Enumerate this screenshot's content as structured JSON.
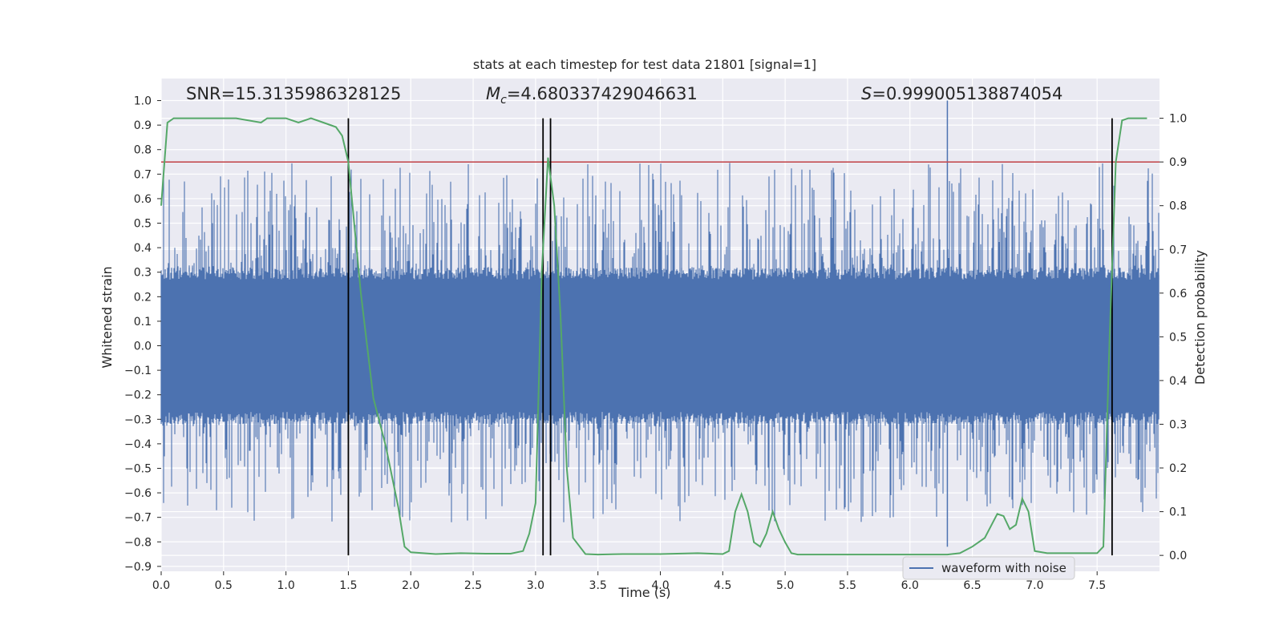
{
  "chart_data": {
    "type": "line",
    "title": "stats at each timestep for test data 21801 [signal=1]",
    "xlabel": "Time (s)",
    "ylabel": "Whitened strain",
    "y2label": "Detection probability",
    "xlim": [
      0.0,
      8.0
    ],
    "ylim": [
      -0.92,
      1.09
    ],
    "y2lim": [
      -0.0364,
      1.0909
    ],
    "grid": true,
    "legend": {
      "position": "bottom-right",
      "entries": [
        "waveform with noise"
      ]
    },
    "x_ticks": [
      "0.0",
      "0.5",
      "1.0",
      "1.5",
      "2.0",
      "2.5",
      "3.0",
      "3.5",
      "4.0",
      "4.5",
      "5.0",
      "5.5",
      "6.0",
      "6.5",
      "7.0",
      "7.5"
    ],
    "y_ticks": [
      "1.0",
      "0.9",
      "0.8",
      "0.7",
      "0.6",
      "0.5",
      "0.4",
      "0.3",
      "0.2",
      "0.1",
      "0.0",
      "−0.1",
      "−0.2",
      "−0.3",
      "−0.4",
      "−0.5",
      "−0.6",
      "−0.7",
      "−0.8",
      "−0.9"
    ],
    "y2_ticks": [
      "1.0",
      "0.9",
      "0.8",
      "0.7",
      "0.6",
      "0.5",
      "0.4",
      "0.3",
      "0.2",
      "0.1",
      "0.0"
    ],
    "annotations": {
      "snr": "SNR=15.3135986328125",
      "mc_symbol": "M",
      "mc_sub": "c",
      "mc_value": "=4.680337429046631",
      "s_symbol": "S",
      "s_value": "=0.999005138874054"
    },
    "series": [
      {
        "name": "waveform with noise",
        "axis": "left",
        "color": "#4c72b0",
        "typical_range": [
          -0.27,
          0.27
        ],
        "spike_extremes_max": 1.0,
        "spike_extremes_min": -0.82
      },
      {
        "axis": "right",
        "color": "#55a868",
        "x": [
          0.0,
          0.05,
          0.1,
          0.15,
          0.2,
          0.4,
          0.6,
          0.8,
          0.85,
          0.9,
          1.0,
          1.1,
          1.2,
          1.3,
          1.4,
          1.45,
          1.5,
          1.6,
          1.7,
          1.8,
          1.9,
          1.95,
          2.0,
          2.2,
          2.4,
          2.6,
          2.8,
          2.9,
          2.95,
          3.0,
          3.05,
          3.1,
          3.15,
          3.2,
          3.25,
          3.3,
          3.4,
          3.5,
          3.7,
          4.0,
          4.3,
          4.5,
          4.55,
          4.6,
          4.65,
          4.7,
          4.75,
          4.8,
          4.85,
          4.9,
          4.95,
          5.0,
          5.05,
          5.1,
          5.5,
          6.0,
          6.3,
          6.4,
          6.5,
          6.6,
          6.7,
          6.75,
          6.8,
          6.85,
          6.9,
          6.95,
          7.0,
          7.1,
          7.2,
          7.3,
          7.4,
          7.5,
          7.55,
          7.6,
          7.65,
          7.7,
          7.75,
          7.8,
          7.9
        ],
        "values": [
          0.8,
          0.99,
          1.0,
          1.0,
          1.0,
          1.0,
          1.0,
          0.99,
          1.0,
          1.0,
          1.0,
          0.99,
          1.0,
          0.99,
          0.98,
          0.96,
          0.9,
          0.6,
          0.36,
          0.25,
          0.11,
          0.02,
          0.007,
          0.003,
          0.005,
          0.004,
          0.004,
          0.01,
          0.05,
          0.12,
          0.65,
          0.91,
          0.8,
          0.55,
          0.2,
          0.04,
          0.003,
          0.002,
          0.003,
          0.003,
          0.005,
          0.003,
          0.01,
          0.1,
          0.14,
          0.1,
          0.03,
          0.02,
          0.05,
          0.1,
          0.06,
          0.03,
          0.005,
          0.002,
          0.002,
          0.002,
          0.002,
          0.005,
          0.02,
          0.04,
          0.095,
          0.09,
          0.06,
          0.07,
          0.13,
          0.1,
          0.01,
          0.005,
          0.005,
          0.005,
          0.005,
          0.005,
          0.02,
          0.5,
          0.9,
          0.995,
          1.0,
          1.0,
          1.0
        ]
      }
    ],
    "threshold": {
      "axis": "right",
      "value": 0.9,
      "color": "#c44e52"
    },
    "vlines": {
      "color": "#000000",
      "x": [
        1.5,
        3.06,
        3.12,
        7.62
      ],
      "y2_range": [
        0.0,
        1.0
      ]
    }
  }
}
